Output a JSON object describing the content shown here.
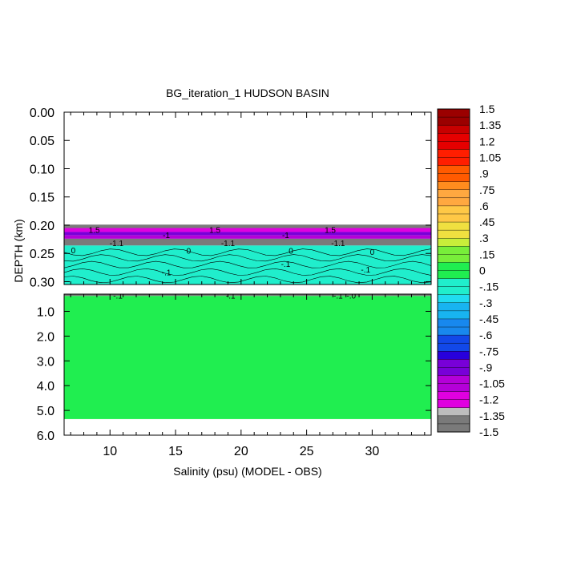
{
  "chart_data": {
    "type": "heatmap",
    "title": "BG_iteration_1 HUDSON BASIN",
    "xlabel": "Salinity (psu) (MODEL - OBS)",
    "ylabel": "DEPTH (km)",
    "xlim": [
      6.5,
      34.5
    ],
    "x_ticks": [
      "10",
      "15",
      "20",
      "25",
      "30"
    ],
    "x_tick_values": [
      10,
      15,
      20,
      25,
      30
    ],
    "upper_panel": {
      "ylim": [
        0.0,
        0.305
      ],
      "y_ticks": [
        "0.00",
        "0.05",
        "0.10",
        "0.15",
        "0.20",
        "0.25",
        "0.30"
      ],
      "y_tick_values": [
        0.0,
        0.05,
        0.1,
        0.15,
        0.2,
        0.25,
        0.3
      ],
      "bands": [
        {
          "from": 0.199,
          "to": 0.205,
          "value": -1.4
        },
        {
          "from": 0.205,
          "to": 0.212,
          "value": -1.2
        },
        {
          "from": 0.212,
          "to": 0.218,
          "value": -0.9
        },
        {
          "from": 0.218,
          "to": 0.224,
          "value": -1.05
        },
        {
          "from": 0.224,
          "to": 0.236,
          "value": -1.4
        },
        {
          "from": 0.236,
          "to": 0.305,
          "value": -0.1
        }
      ],
      "contour_labels": [
        {
          "text": "1.5",
          "x": 8.8,
          "y": 0.208
        },
        {
          "text": "1.5",
          "x": 18.0,
          "y": 0.208
        },
        {
          "text": "1.5",
          "x": 26.8,
          "y": 0.208
        },
        {
          "text": "-1",
          "x": 14.3,
          "y": 0.217
        },
        {
          "text": "-1",
          "x": 23.4,
          "y": 0.217
        },
        {
          "text": "-1.1",
          "x": 10.5,
          "y": 0.231
        },
        {
          "text": "-1.1",
          "x": 19.0,
          "y": 0.231
        },
        {
          "text": "-1.1",
          "x": 27.4,
          "y": 0.231
        },
        {
          "text": "0",
          "x": 7.2,
          "y": 0.244
        },
        {
          "text": "0",
          "x": 16.0,
          "y": 0.245
        },
        {
          "text": "0",
          "x": 23.8,
          "y": 0.245
        },
        {
          "text": "0",
          "x": 30.0,
          "y": 0.247
        },
        {
          "text": "-.1",
          "x": 23.4,
          "y": 0.268
        },
        {
          "text": "-.1",
          "x": 14.3,
          "y": 0.283
        },
        {
          "text": "-.1",
          "x": 29.5,
          "y": 0.278
        }
      ]
    },
    "lower_panel": {
      "ylim": [
        0.305,
        6.0
      ],
      "y_ticks": [
        "1.0",
        "2.0",
        "3.0",
        "4.0",
        "5.0",
        "6.0"
      ],
      "y_tick_values": [
        1.0,
        2.0,
        3.0,
        4.0,
        5.0,
        6.0
      ],
      "bands": [
        {
          "from": 0.305,
          "to": 0.38,
          "value": -1.4
        },
        {
          "from": 0.38,
          "to": 5.35,
          "value": 0.05
        }
      ],
      "contour_labels": [
        {
          "text": "-.1",
          "x": 10.6,
          "y": 0.36
        },
        {
          "text": "-.1",
          "x": 19.2,
          "y": 0.36
        },
        {
          "text": "-.1",
          "x": 27.4,
          "y": 0.36
        },
        {
          "text": "-.0",
          "x": 28.4,
          "y": 0.36
        }
      ]
    },
    "colorbar": {
      "levels": [
        "1.5",
        "1.35",
        "1.2",
        "1.05",
        ".9",
        ".75",
        ".6",
        ".45",
        ".3",
        ".15",
        "0",
        "-.15",
        "-.3",
        "-.45",
        "-.6",
        "-.75",
        "-.9",
        "-1.05",
        "-1.2",
        "-1.35",
        "-1.5"
      ],
      "range": [
        -1.5,
        1.5
      ],
      "steps": 40,
      "colors_top_to_bottom": [
        "#9b0000",
        "#c80000",
        "#e60000",
        "#ff1e00",
        "#ff5a00",
        "#ff8c1e",
        "#ffa840",
        "#ffc846",
        "#f0e040",
        "#c8ee3a",
        "#78ee3a",
        "#20ee50",
        "#20eecc",
        "#20dcf0",
        "#18b4f0",
        "#1888ee",
        "#1248e8",
        "#2800dc",
        "#7800d8",
        "#b400d8",
        "#e000e0",
        "#bdbdbd",
        "#7a7a7a"
      ]
    }
  }
}
